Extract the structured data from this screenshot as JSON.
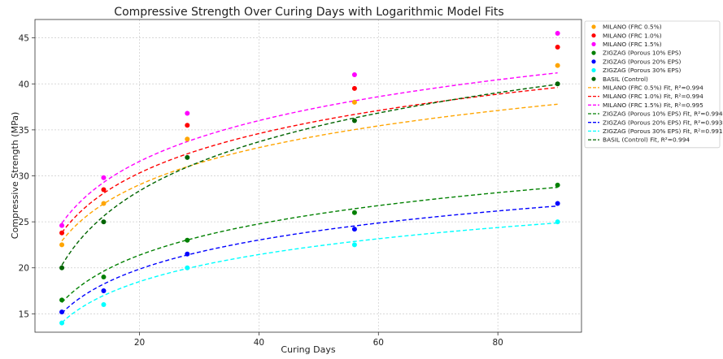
{
  "chart_data": {
    "type": "scatter",
    "title": "Compressive Strength Over Curing Days with Logarithmic Model Fits",
    "xlabel": "Curing Days",
    "ylabel": "Compressive Strength (MPa)",
    "xlim": [
      2.5,
      94
    ],
    "ylim": [
      13,
      47
    ],
    "xticks": [
      20,
      40,
      60,
      80
    ],
    "yticks": [
      15,
      20,
      25,
      30,
      35,
      40,
      45
    ],
    "grid": true,
    "legend_position": "right",
    "x": [
      7,
      14,
      28,
      56,
      90
    ],
    "series": [
      {
        "name": "MILANO (FRC 0.5%)",
        "color": "#ffa500",
        "values": [
          22.5,
          27.0,
          34.0,
          38.0,
          42.0
        ],
        "fit": {
          "a": 5.82,
          "b": 11.6
        },
        "fit_label": "MILANO (FRC 0.5%) Fit, R²=0.994"
      },
      {
        "name": "MILANO (FRC 1.0%)",
        "color": "#ff0000",
        "values": [
          23.8,
          28.5,
          35.5,
          39.5,
          44.0
        ],
        "fit": {
          "a": 6.18,
          "b": 11.8
        },
        "fit_label": "MILANO (FRC 1.0%) Fit, R²=0.994"
      },
      {
        "name": "MILANO (FRC 1.5%)",
        "color": "#ff00ff",
        "values": [
          24.6,
          29.8,
          36.8,
          41.0,
          45.5
        ],
        "fit": {
          "a": 6.4,
          "b": 12.4
        },
        "fit_label": "MILANO (FRC 1.5%) Fit, R²=0.995"
      },
      {
        "name": "ZIGZAG (Porous 10% EPS)",
        "color": "#008000",
        "values": [
          16.5,
          19.0,
          23.0,
          26.0,
          29.0
        ],
        "fit": {
          "a": 4.9,
          "b": 6.7
        },
        "fit_label": "ZIGZAG (Porous 10% EPS) Fit, R²=0.994"
      },
      {
        "name": "ZIGZAG (Porous 20% EPS)",
        "color": "#0000ff",
        "values": [
          15.2,
          17.5,
          21.5,
          24.2,
          27.0
        ],
        "fit": {
          "a": 4.56,
          "b": 6.2
        },
        "fit_label": "ZIGZAG (Porous 20% EPS) Fit, R²=0.993"
      },
      {
        "name": "ZIGZAG (Porous 30% EPS)",
        "color": "#00ffff",
        "values": [
          14.0,
          16.0,
          20.0,
          22.5,
          25.0
        ],
        "fit": {
          "a": 4.24,
          "b": 5.8
        },
        "fit_label": "ZIGZAG (Porous 30% EPS) Fit, R²=0.991"
      },
      {
        "name": "BASIL (Control)",
        "color": "#006400",
        "values": [
          20.0,
          25.0,
          32.0,
          36.0,
          40.0
        ],
        "fit": {
          "a": 7.7,
          "b": 5.3
        },
        "fit_label": "BASIL (Control) Fit, R²=0.994"
      }
    ]
  }
}
